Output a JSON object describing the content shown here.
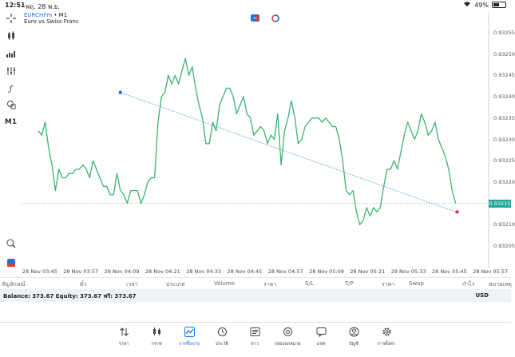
{
  "status_bar": {
    "time": "12:51",
    "date": "พฤ. 28 พ.ย.",
    "battery": "49%",
    "battery_level": 0.49
  },
  "chart": {
    "symbol": "EURCHFm",
    "timeframe_sep": "•",
    "timeframe": "M1",
    "description": "Euro vs Swiss Franc",
    "current_price": "0.93215",
    "y_ticks": [
      "0.93255",
      "0.93250",
      "0.93245",
      "0.93240",
      "0.93235",
      "0.93230",
      "0.93225",
      "0.93220",
      "0.93215",
      "0.93210",
      "0.93205"
    ],
    "x_ticks": [
      "28 Nov 03:45",
      "28 Nov 03:57",
      "28 Nov 04:09",
      "28 Nov 04:21",
      "28 Nov 04:33",
      "28 Nov 04:45",
      "28 Nov 04:57",
      "28 Nov 05:09",
      "28 Nov 05:21",
      "28 Nov 05:33",
      "28 Nov 05:45",
      "28 Nov 05:57"
    ],
    "colors": {
      "line": "#3cb371",
      "trend": "#4a9fd5",
      "price_tag": "#26a69a",
      "marker_end": "#e53935"
    }
  },
  "chart_data": {
    "type": "line",
    "x": [
      "03:45",
      "03:46",
      "03:47",
      "03:48",
      "03:49",
      "03:50",
      "03:51",
      "03:52",
      "03:53",
      "03:54",
      "03:55",
      "03:56",
      "03:57",
      "03:58",
      "03:59",
      "04:00",
      "04:01",
      "04:02",
      "04:03",
      "04:04",
      "04:05",
      "04:06",
      "04:07",
      "04:08",
      "04:09",
      "04:10",
      "04:11",
      "04:12",
      "04:13",
      "04:14",
      "04:15",
      "04:16",
      "04:17",
      "04:18",
      "04:19",
      "04:20",
      "04:21",
      "04:22",
      "04:23",
      "04:24",
      "04:25",
      "04:26",
      "04:27",
      "04:28",
      "04:29",
      "04:30",
      "04:31",
      "04:32",
      "04:33",
      "04:34",
      "04:35",
      "04:36",
      "04:37",
      "04:38",
      "04:39",
      "04:40",
      "04:41",
      "04:42",
      "04:43",
      "04:44",
      "04:45",
      "04:46",
      "04:47",
      "04:48",
      "04:49",
      "04:50",
      "04:51",
      "04:52",
      "04:53",
      "04:54",
      "04:55",
      "04:56",
      "04:57",
      "04:58",
      "04:59",
      "05:00",
      "05:01",
      "05:02",
      "05:03",
      "05:04",
      "05:05",
      "05:06",
      "05:07",
      "05:08",
      "05:09",
      "05:10",
      "05:11",
      "05:12",
      "05:13",
      "05:14",
      "05:15",
      "05:16",
      "05:17",
      "05:18",
      "05:19",
      "05:20",
      "05:21",
      "05:22",
      "05:23",
      "05:24",
      "05:25",
      "05:26",
      "05:27",
      "05:28",
      "05:29",
      "05:30",
      "05:31",
      "05:32",
      "05:33",
      "05:34",
      "05:35",
      "05:36",
      "05:37",
      "05:38",
      "05:39",
      "05:40",
      "05:41",
      "05:42",
      "05:43",
      "05:44",
      "05:45",
      "05:46",
      "05:47"
    ],
    "series": [
      {
        "values": [
          0.93232,
          0.93231,
          0.93234,
          0.93228,
          0.93224,
          0.93218,
          0.93223,
          0.93221,
          0.93221,
          0.93222,
          0.93222,
          0.93223,
          0.93223,
          0.93224,
          0.93223,
          0.93221,
          0.93225,
          0.93223,
          0.93221,
          0.93219,
          0.93219,
          0.93217,
          0.93217,
          0.93222,
          0.93218,
          0.93217,
          0.93215,
          0.93218,
          0.93218,
          0.93218,
          0.93215,
          0.93217,
          0.9322,
          0.93221,
          0.93221,
          0.93234,
          0.9324,
          0.93241,
          0.93245,
          0.93243,
          0.93245,
          0.93243,
          0.93246,
          0.93249,
          0.93245,
          0.93247,
          0.93242,
          0.93238,
          0.93235,
          0.93229,
          0.93229,
          0.93234,
          0.93232,
          0.93238,
          0.9324,
          0.93242,
          0.93242,
          0.9324,
          0.93236,
          0.93238,
          0.9324,
          0.93236,
          0.93235,
          0.93231,
          0.93232,
          0.93233,
          0.93232,
          0.93229,
          0.93231,
          0.9323,
          0.93236,
          0.93224,
          0.93232,
          0.93235,
          0.93239,
          0.93235,
          0.93229,
          0.9323,
          0.93233,
          0.93234,
          0.93235,
          0.93235,
          0.93235,
          0.93234,
          0.93235,
          0.93234,
          0.93233,
          0.93233,
          0.9323,
          0.93225,
          0.93218,
          0.93217,
          0.93218,
          0.93213,
          0.9321,
          0.93211,
          0.93214,
          0.93212,
          0.93214,
          0.93213,
          0.93214,
          0.93219,
          0.93223,
          0.93223,
          0.93225,
          0.93223,
          0.93227,
          0.93231,
          0.93234,
          0.93232,
          0.9323,
          0.93232,
          0.93236,
          0.93234,
          0.93231,
          0.93232,
          0.93234,
          0.9323,
          0.93228,
          0.93226,
          0.93223,
          0.93218,
          0.93215
        ]
      }
    ],
    "trend_line": {
      "start": {
        "x": "04:09",
        "y": 0.93241
      },
      "end": {
        "x": "05:47",
        "y": 0.93213
      }
    },
    "ylim": [
      0.932,
      0.9326
    ],
    "y_tick_step": 5e-05,
    "current_price": 0.93215,
    "grid": true
  },
  "trade_headers": [
    "สัญลักษณ์",
    "ตั๋ว",
    "เวลา",
    "ประเภท",
    "Volume",
    "ราคา",
    "S/L",
    "T/P",
    "ราคา",
    "Swap",
    "กำไร",
    "หมายเหตุ"
  ],
  "balance": {
    "text": "Balance: 373.67 Equity: 373.67 ฟรี: 373.67",
    "currency": "USD"
  },
  "nav": [
    {
      "label": "ราคา",
      "icon": "arrows-updown-icon",
      "active": false
    },
    {
      "label": "กราฟ",
      "icon": "candles-icon",
      "active": false
    },
    {
      "label": "การซื้อขาย",
      "icon": "trade-chart-icon",
      "active": true
    },
    {
      "label": "ประวัติ",
      "icon": "history-icon",
      "active": false
    },
    {
      "label": "ข่าว",
      "icon": "news-icon",
      "active": false
    },
    {
      "label": "กล่องจดหมาย",
      "icon": "mail-icon",
      "active": false
    },
    {
      "label": "แชท",
      "icon": "chat-icon",
      "active": false
    },
    {
      "label": "บัญชี",
      "icon": "account-icon",
      "active": false
    },
    {
      "label": "การตั้งค่า",
      "icon": "settings-icon",
      "active": false
    }
  ]
}
